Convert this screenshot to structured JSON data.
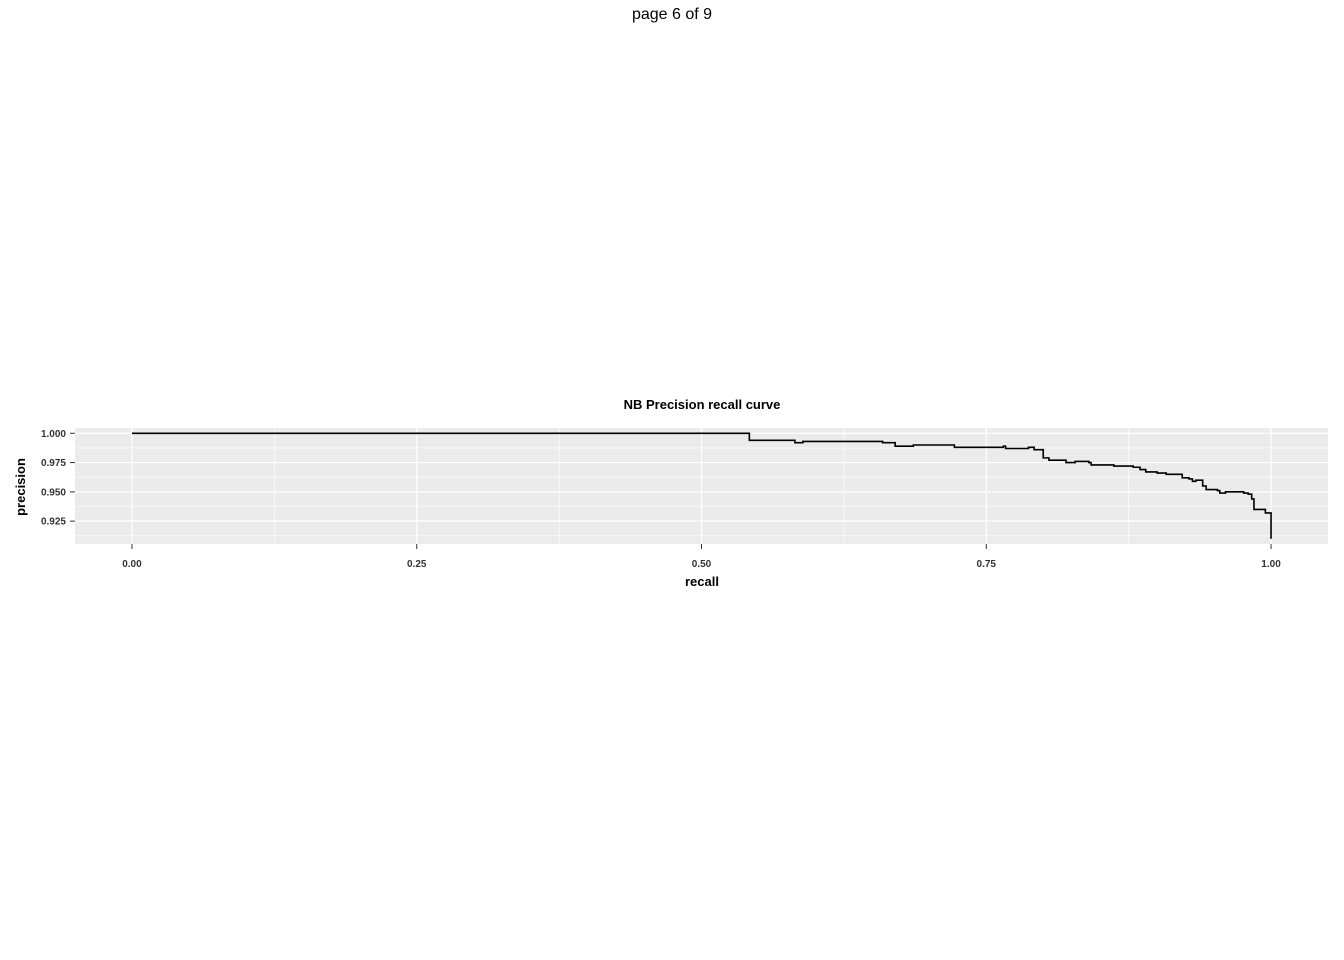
{
  "page": {
    "label": "page 6 of 9"
  },
  "chart_data": {
    "type": "line",
    "title": "NB Precision recall curve",
    "xlabel": "recall",
    "ylabel": "precision",
    "xlim": [
      -0.05,
      1.05
    ],
    "ylim": [
      0.9055,
      1.0045
    ],
    "x_ticks": [
      0.0,
      0.25,
      0.5,
      0.75,
      1.0
    ],
    "x_tick_labels": [
      "0.00",
      "0.25",
      "0.50",
      "0.75",
      "1.00"
    ],
    "y_ticks": [
      0.925,
      0.95,
      0.975,
      1.0
    ],
    "y_tick_labels": [
      "0.925",
      "0.950",
      "0.975",
      "1.000"
    ],
    "grid": true,
    "panel_background": "#ebebeb",
    "gridline_color": "#ffffff",
    "line_color": "#000000",
    "series": [
      {
        "step": true,
        "x": [
          0.0,
          0.542,
          0.582,
          0.589,
          0.659,
          0.67,
          0.686,
          0.722,
          0.765,
          0.767,
          0.787,
          0.792,
          0.797,
          0.8,
          0.805,
          0.82,
          0.828,
          0.84,
          0.842,
          0.862,
          0.879,
          0.885,
          0.89,
          0.9,
          0.908,
          0.922,
          0.928,
          0.931,
          0.934,
          0.94,
          0.943,
          0.948,
          0.953,
          0.955,
          0.96,
          0.971,
          0.976,
          0.98,
          0.983,
          0.985,
          0.992,
          0.995,
          1.0
        ],
        "y": [
          1.0,
          0.994,
          0.992,
          0.993,
          0.992,
          0.989,
          0.99,
          0.988,
          0.989,
          0.987,
          0.988,
          0.986,
          0.986,
          0.979,
          0.977,
          0.975,
          0.976,
          0.975,
          0.973,
          0.972,
          0.971,
          0.969,
          0.967,
          0.966,
          0.965,
          0.962,
          0.961,
          0.959,
          0.96,
          0.955,
          0.952,
          0.952,
          0.951,
          0.949,
          0.95,
          0.95,
          0.949,
          0.948,
          0.944,
          0.935,
          0.935,
          0.932,
          0.91
        ]
      }
    ]
  }
}
